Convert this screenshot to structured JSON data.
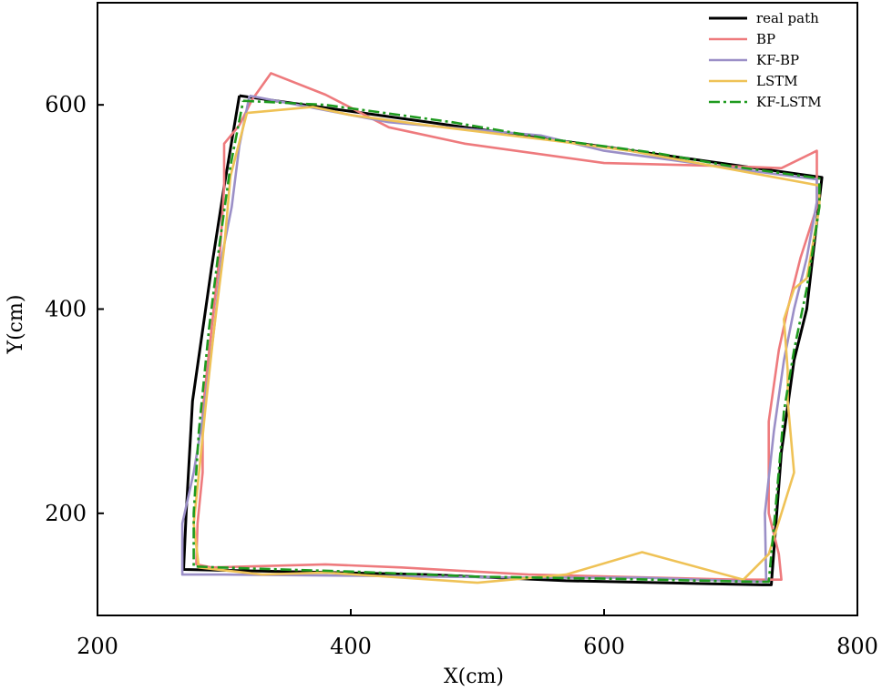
{
  "chart_data": {
    "type": "line",
    "title": "",
    "xlabel": "X(cm)",
    "ylabel": "Y(cm)",
    "xlim": [
      200,
      800
    ],
    "ylim": [
      100,
      700
    ],
    "xticks": [
      200,
      400,
      600,
      800
    ],
    "yticks": [
      200,
      400,
      600
    ],
    "grid": false,
    "legend_position": "top-right",
    "series": [
      {
        "name": "real path",
        "color": "#000000",
        "dash": "solid",
        "points": [
          [
            312,
            609
          ],
          [
            772,
            529
          ],
          [
            772,
            529
          ],
          [
            760,
            400
          ],
          [
            750,
            350
          ],
          [
            740,
            260
          ],
          [
            732,
            130
          ],
          [
            725,
            130
          ],
          [
            570,
            134
          ],
          [
            460,
            140
          ],
          [
            268,
            145
          ],
          [
            270,
            200
          ],
          [
            275,
            310
          ],
          [
            290,
            440
          ],
          [
            300,
            520
          ],
          [
            312,
            609
          ]
        ]
      },
      {
        "name": "BP",
        "color": "#EE7A7D",
        "dash": "solid",
        "points": [
          [
            312,
            580
          ],
          [
            322,
            605
          ],
          [
            337,
            631
          ],
          [
            380,
            610
          ],
          [
            430,
            578
          ],
          [
            490,
            562
          ],
          [
            600,
            543
          ],
          [
            700,
            540
          ],
          [
            740,
            538
          ],
          [
            768,
            555
          ],
          [
            768,
            500
          ],
          [
            755,
            450
          ],
          [
            745,
            400
          ],
          [
            738,
            360
          ],
          [
            730,
            290
          ],
          [
            730,
            200
          ],
          [
            738,
            160
          ],
          [
            740,
            135
          ],
          [
            705,
            135
          ],
          [
            540,
            140
          ],
          [
            440,
            147
          ],
          [
            380,
            150
          ],
          [
            290,
            147
          ],
          [
            278,
            150
          ],
          [
            279,
            190
          ],
          [
            283,
            240
          ],
          [
            283,
            300
          ],
          [
            290,
            380
          ],
          [
            297,
            460
          ],
          [
            300,
            520
          ],
          [
            300,
            562
          ],
          [
            312,
            580
          ]
        ]
      },
      {
        "name": "KF-BP",
        "color": "#9B8FC7",
        "dash": "solid",
        "points": [
          [
            320,
            609
          ],
          [
            400,
            590
          ],
          [
            430,
            583
          ],
          [
            550,
            570
          ],
          [
            600,
            555
          ],
          [
            700,
            538
          ],
          [
            768,
            527
          ],
          [
            768,
            505
          ],
          [
            760,
            450
          ],
          [
            750,
            400
          ],
          [
            742,
            350
          ],
          [
            734,
            280
          ],
          [
            727,
            200
          ],
          [
            728,
            133
          ],
          [
            700,
            134
          ],
          [
            630,
            137
          ],
          [
            540,
            137
          ],
          [
            470,
            138
          ],
          [
            400,
            139
          ],
          [
            300,
            140
          ],
          [
            267,
            140
          ],
          [
            267,
            190
          ],
          [
            276,
            240
          ],
          [
            284,
            300
          ],
          [
            292,
            380
          ],
          [
            298,
            450
          ],
          [
            306,
            500
          ],
          [
            312,
            560
          ],
          [
            320,
            609
          ]
        ]
      },
      {
        "name": "LSTM",
        "color": "#EFC256",
        "dash": "solid",
        "points": [
          [
            318,
            592
          ],
          [
            370,
            598
          ],
          [
            400,
            590
          ],
          [
            460,
            580
          ],
          [
            560,
            565
          ],
          [
            620,
            555
          ],
          [
            700,
            537
          ],
          [
            770,
            521
          ],
          [
            770,
            500
          ],
          [
            760,
            430
          ],
          [
            750,
            420
          ],
          [
            742,
            390
          ],
          [
            745,
            340
          ],
          [
            745,
            310
          ],
          [
            750,
            240
          ],
          [
            730,
            160
          ],
          [
            710,
            135
          ],
          [
            630,
            162
          ],
          [
            570,
            140
          ],
          [
            500,
            132
          ],
          [
            440,
            137
          ],
          [
            380,
            142
          ],
          [
            330,
            140
          ],
          [
            280,
            147
          ],
          [
            276,
            190
          ],
          [
            281,
            250
          ],
          [
            285,
            300
          ],
          [
            292,
            380
          ],
          [
            300,
            460
          ],
          [
            305,
            530
          ],
          [
            318,
            592
          ]
        ]
      },
      {
        "name": "KF-LSTM",
        "color": "#1E9A1E",
        "dash": "dashdot",
        "points": [
          [
            315,
            604
          ],
          [
            380,
            600
          ],
          [
            480,
            583
          ],
          [
            560,
            566
          ],
          [
            640,
            553
          ],
          [
            700,
            540
          ],
          [
            770,
            528
          ],
          [
            770,
            500
          ],
          [
            760,
            420
          ],
          [
            750,
            360
          ],
          [
            742,
            300
          ],
          [
            735,
            200
          ],
          [
            730,
            133
          ],
          [
            720,
            133
          ],
          [
            600,
            136
          ],
          [
            500,
            138
          ],
          [
            400,
            143
          ],
          [
            320,
            146
          ],
          [
            276,
            148
          ],
          [
            276,
            200
          ],
          [
            280,
            280
          ],
          [
            288,
            380
          ],
          [
            296,
            460
          ],
          [
            305,
            540
          ],
          [
            315,
            604
          ]
        ]
      }
    ]
  }
}
